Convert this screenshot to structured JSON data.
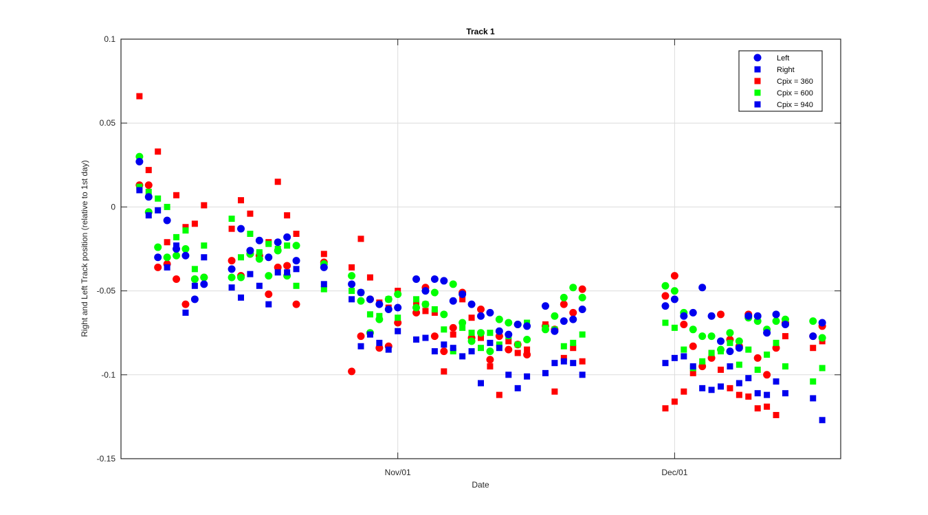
{
  "chart_data": {
    "type": "scatter",
    "title": "Track 1",
    "xlabel": "Date",
    "ylabel": "Right and Left Track position (relative to 1st day)",
    "xlim": [
      "2016-10-02",
      "2016-12-19"
    ],
    "ylim": [
      -0.15,
      0.1
    ],
    "x_ticks": [
      {
        "label": "Nov/01",
        "date": "2016-11-01"
      },
      {
        "label": "Dec/01",
        "date": "2016-12-01"
      }
    ],
    "y_ticks": [
      {
        "label": "0.1",
        "value": 0.1
      },
      {
        "label": "0.05",
        "value": 0.05
      },
      {
        "label": "0",
        "value": 0
      },
      {
        "label": "-0.05",
        "value": -0.05
      },
      {
        "label": "-0.1",
        "value": -0.1
      },
      {
        "label": "-0.15",
        "value": -0.15
      }
    ],
    "grid": true,
    "legend_position": "top-right",
    "legend": [
      {
        "label": "Left",
        "marker": "circle",
        "color": "#0000ee"
      },
      {
        "label": "Right",
        "marker": "square",
        "color": "#0000ee"
      },
      {
        "label": "Cpix = 360",
        "marker": "square",
        "color": "#ff0000"
      },
      {
        "label": "Cpix = 600",
        "marker": "square",
        "color": "#00ff00"
      },
      {
        "label": "Cpix = 940",
        "marker": "square",
        "color": "#0000ee"
      }
    ],
    "colors": {
      "c360": "#ff0000",
      "c600": "#00ff00",
      "c940": "#0000ee"
    },
    "dates": [
      "2016-10-04",
      "2016-10-05",
      "2016-10-06",
      "2016-10-07",
      "2016-10-08",
      "2016-10-09",
      "2016-10-10",
      "2016-10-11",
      "2016-10-14",
      "2016-10-15",
      "2016-10-16",
      "2016-10-17",
      "2016-10-18",
      "2016-10-19",
      "2016-10-20",
      "2016-10-21",
      "2016-10-24",
      "2016-10-27",
      "2016-10-28",
      "2016-10-29",
      "2016-10-30",
      "2016-10-31",
      "2016-11-01",
      "2016-11-03",
      "2016-11-04",
      "2016-11-05",
      "2016-11-06",
      "2016-11-07",
      "2016-11-08",
      "2016-11-09",
      "2016-11-10",
      "2016-11-11",
      "2016-11-12",
      "2016-11-13",
      "2016-11-14",
      "2016-11-15",
      "2016-11-17",
      "2016-11-18",
      "2016-11-19",
      "2016-11-20",
      "2016-11-21",
      "2016-11-30",
      "2016-12-01",
      "2016-12-02",
      "2016-12-03",
      "2016-12-04",
      "2016-12-05",
      "2016-12-06",
      "2016-12-07",
      "2016-12-08",
      "2016-12-09",
      "2016-12-10",
      "2016-12-11",
      "2016-12-12",
      "2016-12-13",
      "2016-12-16",
      "2016-12-17"
    ],
    "left": {
      "c360": [
        0.013,
        0.013,
        -0.036,
        -0.034,
        -0.043,
        -0.058,
        -0.043,
        -0.042,
        -0.032,
        -0.041,
        -0.028,
        -0.029,
        -0.052,
        -0.036,
        -0.035,
        -0.058,
        -0.033,
        -0.098,
        -0.077,
        -0.055,
        -0.084,
        -0.083,
        -0.069,
        -0.063,
        -0.048,
        -0.077,
        -0.086,
        -0.072,
        -0.051,
        -0.078,
        -0.061,
        -0.091,
        -0.077,
        -0.085,
        -0.082,
        -0.088,
        -0.071,
        -0.073,
        -0.058,
        -0.063,
        -0.049,
        -0.053,
        -0.041,
        -0.07,
        -0.083,
        -0.095,
        -0.09,
        -0.064,
        -0.079,
        -0.083,
        -0.064,
        -0.09,
        -0.1,
        -0.084,
        -0.069,
        -0.077,
        -0.071
      ],
      "c600": [
        0.03,
        -0.003,
        -0.024,
        -0.03,
        -0.029,
        -0.025,
        -0.043,
        -0.042,
        -0.042,
        -0.042,
        -0.028,
        -0.031,
        -0.041,
        -0.026,
        -0.041,
        -0.023,
        -0.034,
        -0.041,
        -0.056,
        -0.075,
        -0.067,
        -0.055,
        -0.052,
        -0.06,
        -0.058,
        -0.051,
        -0.064,
        -0.046,
        -0.069,
        -0.08,
        -0.075,
        -0.086,
        -0.067,
        -0.069,
        -0.07,
        -0.079,
        -0.073,
        -0.065,
        -0.054,
        -0.048,
        -0.054,
        -0.047,
        -0.05,
        -0.063,
        -0.073,
        -0.077,
        -0.077,
        -0.085,
        -0.075,
        -0.08,
        -0.066,
        -0.068,
        -0.073,
        -0.068,
        -0.067,
        -0.068,
        -0.078
      ],
      "c940": [
        0.027,
        0.006,
        -0.03,
        -0.008,
        -0.025,
        -0.029,
        -0.055,
        -0.046,
        -0.037,
        -0.013,
        -0.026,
        -0.02,
        -0.03,
        -0.021,
        -0.018,
        -0.032,
        -0.036,
        -0.046,
        -0.051,
        -0.055,
        -0.058,
        -0.061,
        -0.06,
        -0.043,
        -0.05,
        -0.043,
        -0.044,
        -0.056,
        -0.052,
        -0.058,
        -0.065,
        -0.063,
        -0.074,
        -0.076,
        -0.07,
        -0.071,
        -0.059,
        -0.074,
        -0.068,
        -0.067,
        -0.061,
        -0.059,
        -0.055,
        -0.065,
        -0.063,
        -0.048,
        -0.065,
        -0.08,
        -0.086,
        -0.084,
        -0.065,
        -0.065,
        -0.075,
        -0.064,
        -0.07,
        -0.077,
        -0.069
      ]
    },
    "right": {
      "c360": [
        0.066,
        0.022,
        0.033,
        -0.021,
        0.007,
        -0.012,
        -0.01,
        0.001,
        -0.013,
        0.004,
        -0.004,
        -0.028,
        -0.021,
        0.015,
        -0.005,
        -0.016,
        -0.028,
        -0.036,
        -0.019,
        -0.042,
        -0.057,
        -0.06,
        -0.05,
        -0.058,
        -0.062,
        -0.063,
        -0.098,
        -0.076,
        -0.055,
        -0.066,
        -0.078,
        -0.095,
        -0.112,
        -0.08,
        -0.087,
        -0.085,
        -0.07,
        -0.11,
        -0.09,
        -0.084,
        -0.092,
        -0.12,
        -0.116,
        -0.11,
        -0.099,
        -0.094,
        -0.087,
        -0.097,
        -0.108,
        -0.112,
        -0.113,
        -0.12,
        -0.119,
        -0.124,
        -0.077,
        -0.084,
        -0.08
      ],
      "c600": [
        0.012,
        0.009,
        0.005,
        0.0,
        -0.018,
        -0.014,
        -0.037,
        -0.023,
        -0.007,
        -0.03,
        -0.016,
        -0.027,
        -0.022,
        -0.025,
        -0.023,
        -0.047,
        -0.049,
        -0.05,
        -0.051,
        -0.064,
        -0.065,
        -0.055,
        -0.066,
        -0.055,
        -0.058,
        -0.061,
        -0.073,
        -0.086,
        -0.072,
        -0.075,
        -0.084,
        -0.075,
        -0.082,
        -0.077,
        -0.082,
        -0.069,
        -0.072,
        -0.073,
        -0.083,
        -0.081,
        -0.076,
        -0.069,
        -0.072,
        -0.085,
        -0.096,
        -0.092,
        -0.087,
        -0.086,
        -0.081,
        -0.094,
        -0.085,
        -0.097,
        -0.088,
        -0.081,
        -0.095,
        -0.104,
        -0.096
      ],
      "c940": [
        0.01,
        -0.005,
        -0.002,
        -0.036,
        -0.023,
        -0.063,
        -0.047,
        -0.03,
        -0.048,
        -0.054,
        -0.04,
        -0.047,
        -0.058,
        -0.039,
        -0.039,
        -0.037,
        -0.046,
        -0.055,
        -0.083,
        -0.076,
        -0.081,
        -0.085,
        -0.074,
        -0.079,
        -0.078,
        -0.086,
        -0.082,
        -0.084,
        -0.089,
        -0.086,
        -0.105,
        -0.081,
        -0.084,
        -0.1,
        -0.108,
        -0.101,
        -0.099,
        -0.093,
        -0.092,
        -0.093,
        -0.1,
        -0.093,
        -0.09,
        -0.089,
        -0.095,
        -0.108,
        -0.109,
        -0.107,
        -0.095,
        -0.105,
        -0.102,
        -0.111,
        -0.112,
        -0.104,
        -0.111,
        -0.114,
        -0.127
      ]
    }
  }
}
